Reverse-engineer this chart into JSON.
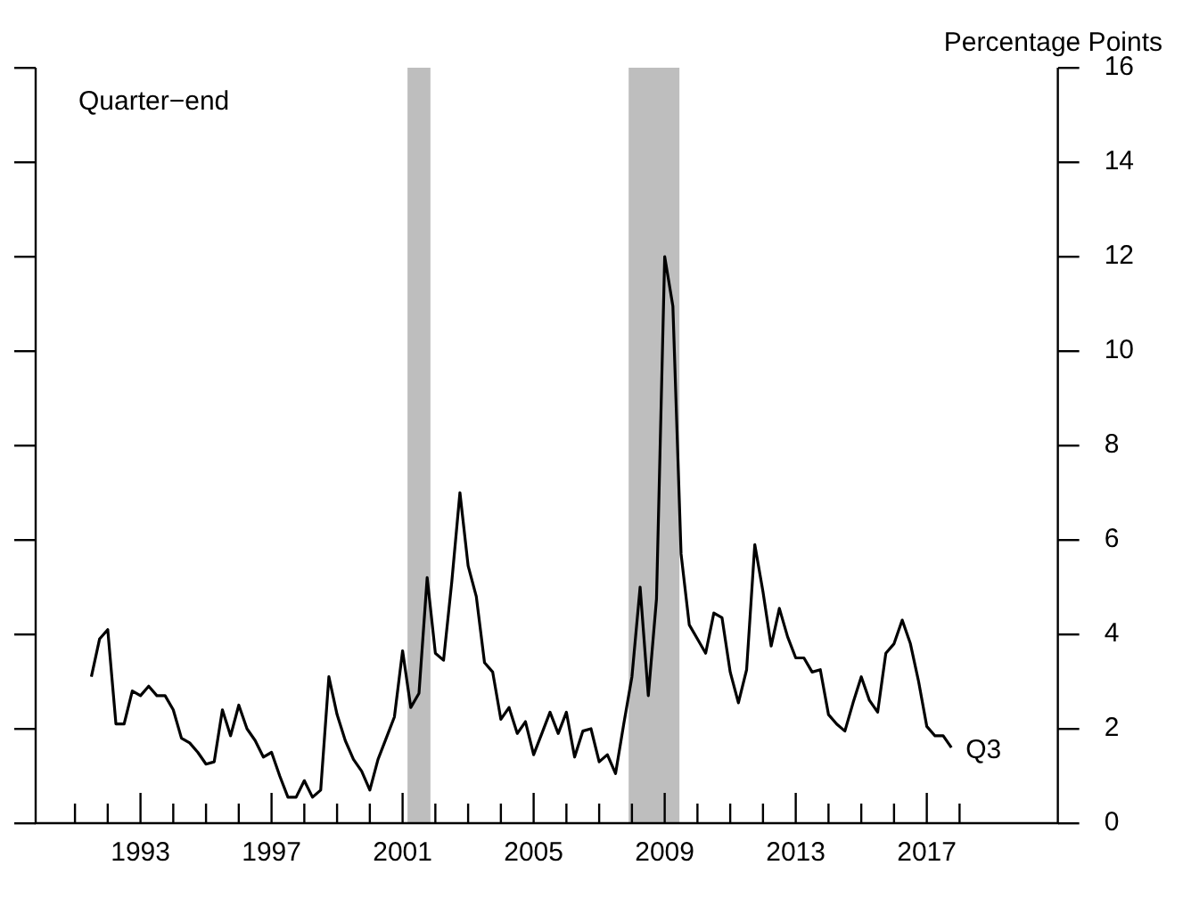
{
  "chart_data": {
    "type": "line",
    "ylabel": "Percentage Points",
    "annotations": [
      "Quarter−end",
      {
        "text": "Q3",
        "x": 2017.75,
        "y": 1.6
      }
    ],
    "x": [
      1991.5,
      1991.75,
      1992,
      1992.25,
      1992.5,
      1992.75,
      1993,
      1993.25,
      1993.5,
      1993.75,
      1994,
      1994.25,
      1994.5,
      1994.75,
      1995,
      1995.25,
      1995.5,
      1995.75,
      1996,
      1996.25,
      1996.5,
      1996.75,
      1997,
      1997.25,
      1997.5,
      1997.75,
      1998,
      1998.25,
      1998.5,
      1998.75,
      1999,
      1999.25,
      1999.5,
      1999.75,
      2000,
      2000.25,
      2000.5,
      2000.75,
      2001,
      2001.25,
      2001.5,
      2001.75,
      2002,
      2002.25,
      2002.5,
      2002.75,
      2003,
      2003.25,
      2003.5,
      2003.75,
      2004,
      2004.25,
      2004.5,
      2004.75,
      2005,
      2005.25,
      2005.5,
      2005.75,
      2006,
      2006.25,
      2006.5,
      2006.75,
      2007,
      2007.25,
      2007.5,
      2007.75,
      2008,
      2008.25,
      2008.5,
      2008.75,
      2009,
      2009.25,
      2009.5,
      2009.75,
      2010,
      2010.25,
      2010.5,
      2010.75,
      2011,
      2011.25,
      2011.5,
      2011.75,
      2012,
      2012.25,
      2012.5,
      2012.75,
      2013,
      2013.25,
      2013.5,
      2013.75,
      2014,
      2014.25,
      2014.5,
      2014.75,
      2015,
      2015.25,
      2015.5,
      2015.75,
      2016,
      2016.25,
      2016.5,
      2016.75,
      2017,
      2017.25,
      2017.5,
      2017.75
    ],
    "series": [
      {
        "color": "#000000",
        "values": [
          3.1,
          3.9,
          4.1,
          2.1,
          2.1,
          2.8,
          2.7,
          2.9,
          2.7,
          2.7,
          2.4,
          1.8,
          1.7,
          1.5,
          1.25,
          1.3,
          2.4,
          1.85,
          2.5,
          2.0,
          1.75,
          1.4,
          1.5,
          1.0,
          0.55,
          0.55,
          0.9,
          0.55,
          0.7,
          3.1,
          2.3,
          1.75,
          1.35,
          1.1,
          0.7,
          1.35,
          1.8,
          2.25,
          3.65,
          2.45,
          2.75,
          5.2,
          3.6,
          3.45,
          5.1,
          7.0,
          5.45,
          4.8,
          3.4,
          3.2,
          2.2,
          2.45,
          1.9,
          2.15,
          1.45,
          1.9,
          2.35,
          1.9,
          2.35,
          1.4,
          1.95,
          2.0,
          1.3,
          1.45,
          1.05,
          2.1,
          3.1,
          5.0,
          2.7,
          4.75,
          12.0,
          10.95,
          5.7,
          4.2,
          3.9,
          3.6,
          4.45,
          4.35,
          3.2,
          2.55,
          3.25,
          5.9,
          4.9,
          3.75,
          4.55,
          3.95,
          3.5,
          3.5,
          3.2,
          3.25,
          2.3,
          2.1,
          1.95,
          2.55,
          3.1,
          2.6,
          2.35,
          3.6,
          3.8,
          4.3,
          3.8,
          3.0,
          2.05,
          1.85,
          1.85,
          1.6
        ]
      }
    ],
    "xlim": [
      1989.8,
      2021
    ],
    "xticks": [
      {
        "value": 1991,
        "label": null
      },
      {
        "value": 1992,
        "label": null
      },
      1993,
      {
        "value": 1994,
        "label": null
      },
      {
        "value": 1995,
        "label": null
      },
      {
        "value": 1996,
        "label": null
      },
      1997,
      {
        "value": 1998,
        "label": null
      },
      {
        "value": 1999,
        "label": null
      },
      {
        "value": 2000,
        "label": null
      },
      2001,
      {
        "value": 2002,
        "label": null
      },
      {
        "value": 2003,
        "label": null
      },
      {
        "value": 2004,
        "label": null
      },
      2005,
      {
        "value": 2006,
        "label": null
      },
      {
        "value": 2007,
        "label": null
      },
      {
        "value": 2008,
        "label": null
      },
      2009,
      {
        "value": 2010,
        "label": null
      },
      {
        "value": 2011,
        "label": null
      },
      {
        "value": 2012,
        "label": null
      },
      2013,
      {
        "value": 2014,
        "label": null
      },
      {
        "value": 2015,
        "label": null
      },
      {
        "value": 2016,
        "label": null
      },
      2017,
      {
        "value": 2018,
        "label": null
      }
    ],
    "ylim": [
      0,
      16
    ],
    "yticks": [
      0,
      2,
      4,
      6,
      8,
      10,
      12,
      14,
      16
    ],
    "bands": [
      {
        "axis": "x",
        "from": 2001.15,
        "to": 2001.85,
        "color": "#bebebe"
      },
      {
        "axis": "x",
        "from": 2007.9,
        "to": 2009.45,
        "color": "#bebebe"
      }
    ],
    "grid": false,
    "legend": false,
    "marker": "none",
    "line_style": "solid"
  }
}
